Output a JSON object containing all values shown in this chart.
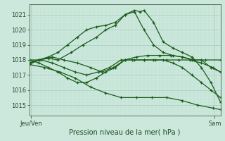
{
  "title": "Pression niveau de la mer( hPa )",
  "ylabel_ticks": [
    1015,
    1016,
    1017,
    1018,
    1019,
    1020,
    1021
  ],
  "ylim": [
    1014.3,
    1021.7
  ],
  "xlim": [
    0,
    1
  ],
  "xtick_positions": [
    0.01,
    0.97
  ],
  "xtick_labels": [
    "Jeu/Ven",
    "Sam"
  ],
  "background_color": "#cce8dc",
  "grid_color_major": "#aacfbf",
  "grid_color_minor": "#bdddd0",
  "line_color": "#1a5c1a",
  "series": [
    {
      "x": [
        0.0,
        0.05,
        0.1,
        0.15,
        0.22,
        0.28,
        0.35,
        0.4,
        0.45,
        0.5,
        0.55,
        0.58,
        0.6,
        0.65,
        0.7,
        0.75,
        0.8,
        0.85,
        0.9,
        0.95,
        1.0
      ],
      "y": [
        1017.7,
        1018.0,
        1018.1,
        1018.0,
        1018.5,
        1019.0,
        1019.5,
        1020.0,
        1020.3,
        1021.0,
        1021.3,
        1021.2,
        1021.3,
        1020.5,
        1019.2,
        1018.8,
        1018.5,
        1018.2,
        1017.5,
        1016.5,
        1015.2
      ]
    },
    {
      "x": [
        0.0,
        0.05,
        0.1,
        0.15,
        0.2,
        0.25,
        0.3,
        0.35,
        0.4,
        0.45,
        0.5,
        0.55,
        0.6,
        0.65,
        0.7,
        0.75,
        0.8,
        0.85,
        0.9,
        0.95,
        1.0
      ],
      "y": [
        1017.8,
        1018.0,
        1018.2,
        1018.5,
        1019.0,
        1019.5,
        1020.0,
        1020.2,
        1020.3,
        1020.5,
        1021.0,
        1021.2,
        1020.0,
        1019.0,
        1018.5,
        1018.3,
        1018.2,
        1018.0,
        1018.0,
        1017.5,
        1017.2
      ]
    },
    {
      "x": [
        0.0,
        0.05,
        0.12,
        0.18,
        0.25,
        0.32,
        0.38,
        0.44,
        0.5,
        0.56,
        0.62,
        0.68,
        0.74,
        0.8,
        0.86,
        0.92,
        1.0
      ],
      "y": [
        1017.8,
        1018.0,
        1018.2,
        1018.0,
        1017.8,
        1017.5,
        1017.2,
        1017.5,
        1018.0,
        1018.2,
        1018.3,
        1018.3,
        1018.3,
        1018.2,
        1018.0,
        1018.0,
        1018.0
      ]
    },
    {
      "x": [
        0.0,
        0.06,
        0.12,
        0.18,
        0.24,
        0.3,
        0.36,
        0.42,
        0.48,
        0.54,
        0.6,
        0.66,
        0.72,
        0.78,
        0.84,
        0.9,
        0.96,
        1.0
      ],
      "y": [
        1018.0,
        1018.0,
        1017.8,
        1017.5,
        1017.2,
        1017.0,
        1017.2,
        1017.5,
        1018.0,
        1018.0,
        1018.0,
        1018.0,
        1018.0,
        1018.0,
        1018.0,
        1017.8,
        1017.5,
        1017.2
      ]
    },
    {
      "x": [
        0.0,
        0.05,
        0.1,
        0.15,
        0.2,
        0.25,
        0.3,
        0.35,
        0.4,
        0.45,
        0.5,
        0.55,
        0.6,
        0.65,
        0.7,
        0.75,
        0.8,
        0.85,
        0.9,
        0.95,
        1.0
      ],
      "y": [
        1018.0,
        1017.8,
        1017.5,
        1017.2,
        1016.8,
        1016.5,
        1016.5,
        1016.8,
        1017.2,
        1017.5,
        1018.0,
        1018.0,
        1018.0,
        1018.0,
        1018.0,
        1017.8,
        1017.5,
        1017.0,
        1016.5,
        1016.0,
        1015.5
      ]
    },
    {
      "x": [
        0.0,
        0.08,
        0.16,
        0.24,
        0.32,
        0.4,
        0.48,
        0.56,
        0.64,
        0.72,
        0.8,
        0.88,
        0.96,
        1.0
      ],
      "y": [
        1017.7,
        1017.5,
        1017.2,
        1016.8,
        1016.2,
        1015.8,
        1015.5,
        1015.5,
        1015.5,
        1015.5,
        1015.3,
        1015.0,
        1014.8,
        1014.7
      ]
    }
  ]
}
